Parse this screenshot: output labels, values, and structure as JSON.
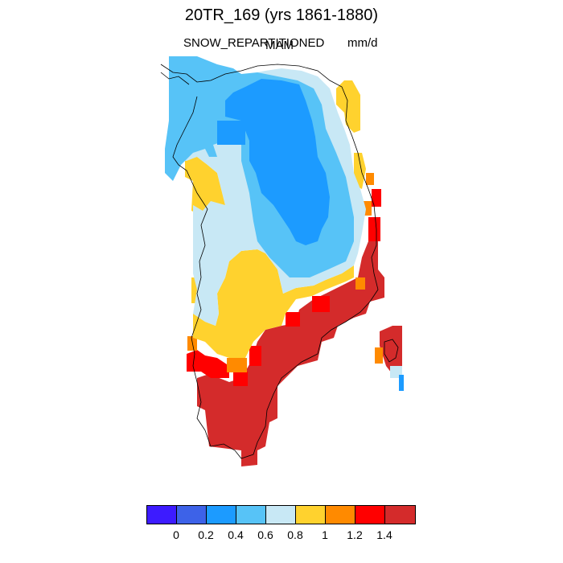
{
  "title": "20TR_169 (yrs 1861-1880)",
  "variable": "SNOW_REPARTITIONED",
  "season": "MAM",
  "units": "mm/d",
  "colorbar": {
    "colors": [
      "#3d1bff",
      "#3d62e8",
      "#1c9bff",
      "#57c3f7",
      "#c8e8f5",
      "#ffd22e",
      "#ff8a00",
      "#ff0000",
      "#d42b2b"
    ],
    "tick_labels": [
      "0",
      "0.2",
      "0.4",
      "0.6",
      "0.8",
      "1",
      "1.2",
      "1.4"
    ]
  },
  "map": {
    "region": "Greenland",
    "legend_levels": {
      "lightblue": "0.6-0.8",
      "midblue": "0.4-0.6",
      "blue": "0.2-0.4 (interior)",
      "yellow": "0.8-1",
      "orange": "1-1.2",
      "red": "1.2-1.4",
      "darkred": ">1.4"
    }
  }
}
